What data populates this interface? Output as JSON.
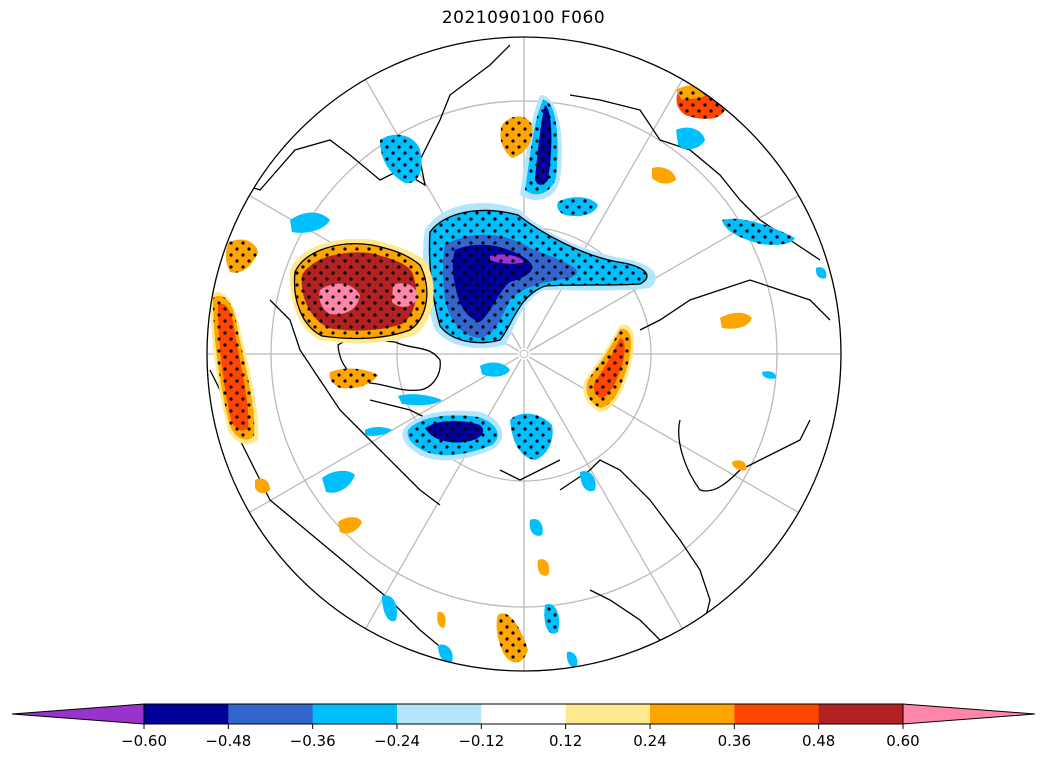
{
  "title": "2021090100 F060",
  "colorbar": {
    "colors": [
      "#9933cc",
      "#000099",
      "#3366cc",
      "#00bfff",
      "#b3e5fc",
      "#ffffff",
      "#ffe98f",
      "#ffa500",
      "#ff4500",
      "#b22222",
      "#ff85a9"
    ],
    "tick_labels": [
      "−0.60",
      "−0.48",
      "−0.36",
      "−0.24",
      "−0.12",
      "0.12",
      "0.24",
      "0.36",
      "0.48",
      "0.60"
    ]
  },
  "colors": {
    "graticule": "#bbbbbb",
    "coast": "#000000",
    "land_bg": "#ffffff"
  }
}
